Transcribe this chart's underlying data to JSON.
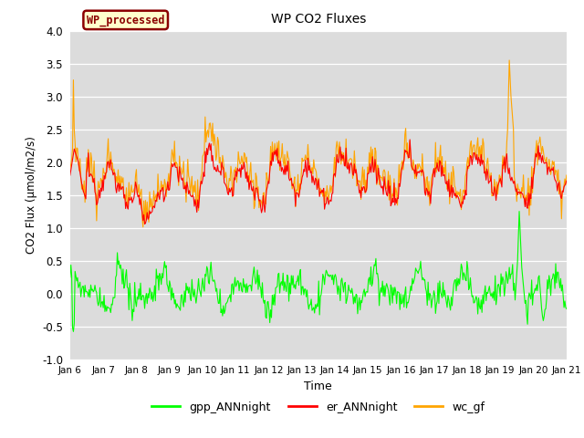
{
  "title": "WP CO2 Fluxes",
  "xlabel": "Time",
  "ylabel": "CO2 Flux (μmol/m2/s)",
  "ylim": [
    -1.0,
    4.0
  ],
  "yticks": [
    -1.0,
    -0.5,
    0.0,
    0.5,
    1.0,
    1.5,
    2.0,
    2.5,
    3.0,
    3.5,
    4.0
  ],
  "xtick_labels": [
    "Jan 6",
    "Jan 7",
    "Jan 8",
    "Jan 9",
    "Jan 10",
    "Jan 11",
    "Jan 12",
    "Jan 13",
    "Jan 14",
    "Jan 15",
    "Jan 16",
    "Jan 17",
    "Jan 18",
    "Jan 19",
    "Jan 20",
    "Jan 21"
  ],
  "n_points": 600,
  "colors": {
    "gpp": "#00FF00",
    "er": "#FF0000",
    "wc": "#FFA500",
    "watermark_bg": "#FFFFCC",
    "watermark_border": "#8B0000",
    "watermark_text": "#8B0000"
  },
  "watermark_text": "WP_processed",
  "legend_labels": [
    "gpp_ANNnight",
    "er_ANNnight",
    "wc_gf"
  ],
  "axes_background": "#DCDCDC"
}
